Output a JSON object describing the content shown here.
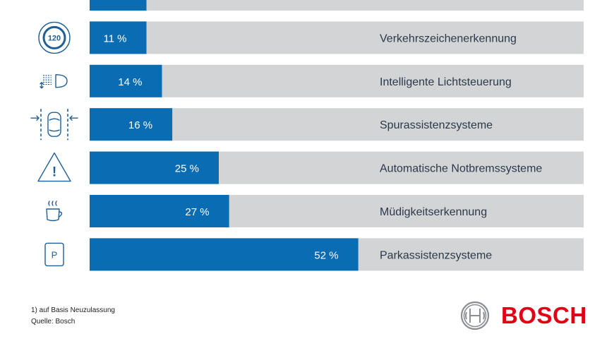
{
  "chart_data": {
    "type": "bar",
    "orientation": "horizontal",
    "unit": "%",
    "xlim": [
      0,
      100
    ],
    "categories": [
      "",
      "Verkehrszeichenerkennung",
      "Intelligente Lichtsteuerung",
      "Spurassistenzsysteme",
      "Automatische Notbremssysteme",
      "Müdigkeitserkennung",
      "Parkassistenzsysteme"
    ],
    "values": [
      11,
      11,
      14,
      16,
      25,
      27,
      52
    ],
    "value_labels": [
      "",
      "11 %",
      "14 %",
      "16 %",
      "25 %",
      "27 %",
      "52 %"
    ],
    "icons": [
      "",
      "speed-limit-120-icon",
      "headlight-icon",
      "lane-keeping-icon",
      "warning-triangle-icon",
      "coffee-cup-icon",
      "parking-sign-icon"
    ],
    "icon_texts": {
      "speed_limit": "120",
      "parking": "P",
      "warning": "!"
    }
  },
  "footnotes": {
    "basis": "1) auf Basis Neuzulassung",
    "source": "Quelle: Bosch"
  },
  "brand": {
    "name": "BOSCH",
    "color": "#e20015"
  },
  "colors": {
    "bar": "#0a6cb3",
    "track": "#d3d4d6",
    "icon": "#1f5f96",
    "text": "#2a3a4a"
  }
}
